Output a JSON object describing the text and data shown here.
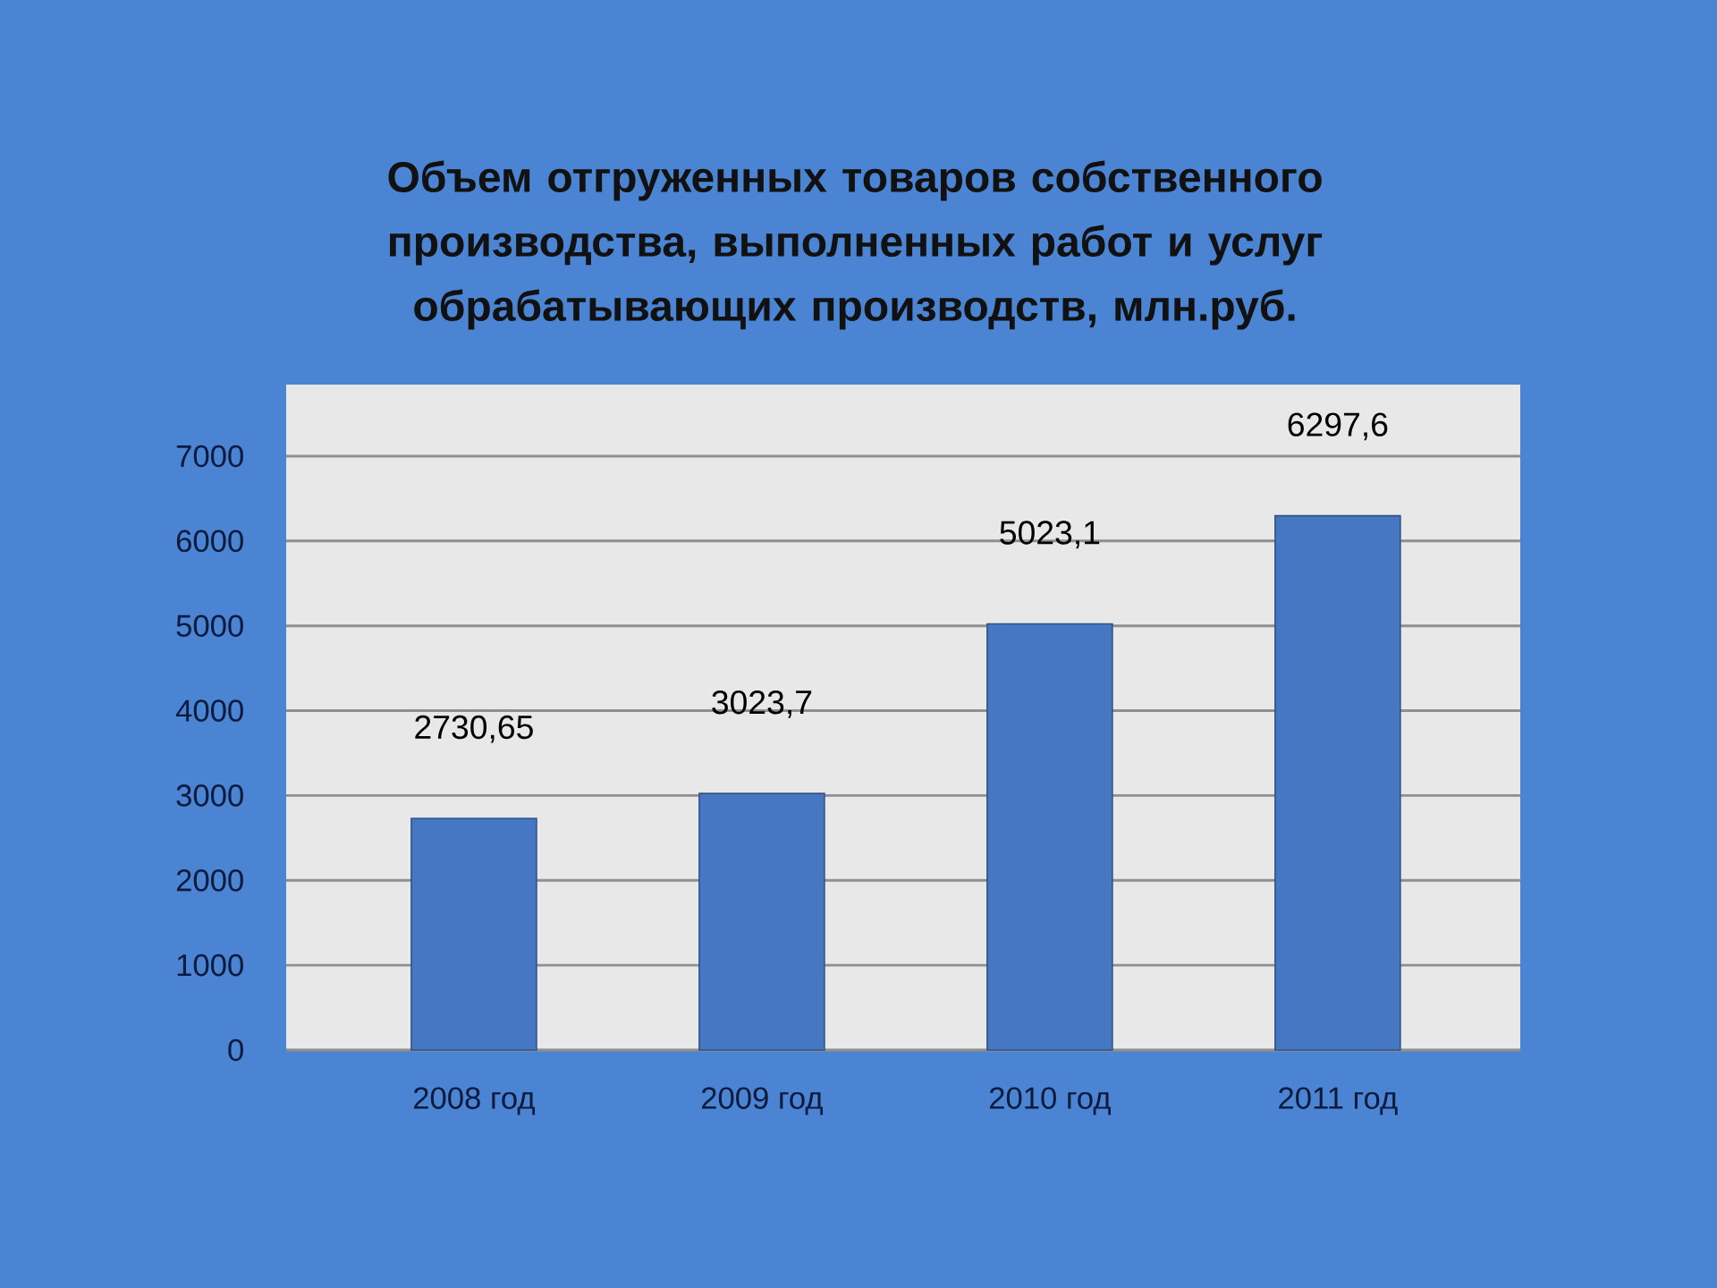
{
  "chart_data": {
    "type": "bar",
    "title": "Объем отгруженных товаров собственного производства, выполненных работ и услуг обрабатывающих производств, млн.руб.",
    "categories": [
      "2008 год",
      "2009 год",
      "2010 год",
      "2011 год"
    ],
    "values": [
      2730.65,
      3023.7,
      5023.1,
      6297.6
    ],
    "value_labels": [
      "2730,65",
      "3023,7",
      "5023,1",
      "6297,6"
    ],
    "color": "#4677c2",
    "ylim": [
      0,
      7000
    ],
    "yticks": [
      0,
      1000,
      2000,
      3000,
      4000,
      5000,
      6000,
      7000
    ],
    "grid": "y"
  }
}
